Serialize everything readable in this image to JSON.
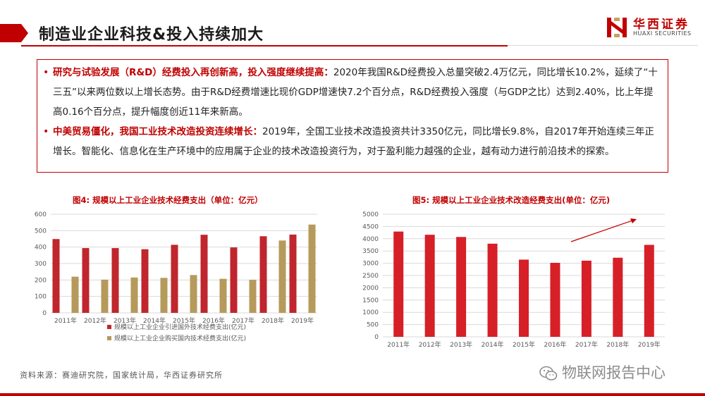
{
  "header": {
    "title": "制造业企业科技&投入持续加大",
    "logo_cn": "华西证券",
    "logo_en": "HUAXI SECURITIES"
  },
  "bullets": [
    {
      "highlight": "研究与试验发展（R&D）经费投入再创新高，投入强度继续提高：",
      "text": "2020年我国R&D经费投入总量突破2.4万亿元，同比增长10.2%，延续了“十三五”以来两位数以上增长态势。由于R&D经费增速比现价GDP增速快7.2个百分点，R&D经费投入强度（与GDP之比）达到2.40%，比上年提高0.16个百分点，提升幅度创近11年来新高。"
    },
    {
      "highlight": "中美贸易僵化，我国工业技术改造投资连续增长：",
      "text": "2019年，全国工业技术改造投资共计3350亿元，同比增长9.8%，自2017年开始连续三年正增长。智能化、信息化在生产环境中的应用属于企业的技术改造投资行为，对于盈利能力越强的企业，越有动力进行前沿技术的探索。"
    }
  ],
  "chart_data": [
    {
      "type": "bar",
      "title": "图4:  规模以上工业企业技术经费支出（单位：亿元）",
      "categories": [
        "2011年",
        "2012年",
        "2013年",
        "2014年",
        "2015年",
        "2016年",
        "2017年",
        "2018年",
        "2019年"
      ],
      "series": [
        {
          "name": "规模以上工业企业引进国外技术经费支出(亿元)",
          "color": "#c0262d",
          "values": [
            449,
            394,
            394,
            387,
            414,
            475,
            398,
            466,
            476
          ]
        },
        {
          "name": "规模以上工业企业购买国内技术经费支出(亿元)",
          "color": "#b59a5b",
          "values": [
            220,
            202,
            215,
            213,
            230,
            207,
            201,
            440,
            537
          ]
        }
      ],
      "ylim": [
        0,
        600
      ],
      "yticks": [
        "0",
        "100",
        "200",
        "300",
        "400",
        "500",
        "600"
      ],
      "grid": true,
      "legend_position": "bottom"
    },
    {
      "type": "bar",
      "title": "图5:  规模以上工业企业技术改造经费支出(单位：亿元)",
      "categories": [
        "2011年",
        "2012年",
        "2013年",
        "2014年",
        "2015年",
        "2016年",
        "2017年",
        "2018年",
        "2019年"
      ],
      "series": [
        {
          "color": "#d71f27",
          "values": [
            4293,
            4162,
            4072,
            3798,
            3148,
            3017,
            3105,
            3225,
            3750
          ]
        }
      ],
      "ylim": [
        0,
        5000
      ],
      "yticks": [
        "0",
        "500",
        "1000",
        "1500",
        "2000",
        "2500",
        "3000",
        "3500",
        "4000",
        "4500",
        "5000"
      ],
      "grid": true,
      "annotation": "upward trend arrow"
    }
  ],
  "footer": {
    "source": "资料来源：赛迪研究院，国家统计局，华西证券研究所",
    "watermark": "物联网报告中心"
  }
}
